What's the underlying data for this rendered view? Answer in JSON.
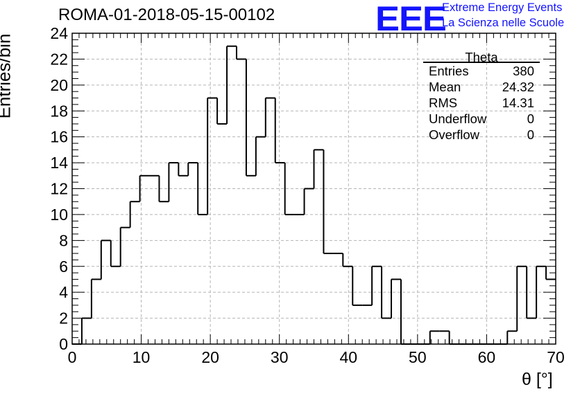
{
  "chart_data": {
    "type": "bar",
    "style": "step-histogram",
    "title": "ROMA-01-2018-05-15-00102",
    "xlabel": "θ [°]",
    "ylabel": "Entries/bin",
    "xlim": [
      0,
      70
    ],
    "ylim": [
      0,
      24
    ],
    "bin_width": 1.4,
    "x_ticks": [
      0,
      10,
      20,
      30,
      40,
      50,
      60,
      70
    ],
    "y_ticks": [
      0,
      2,
      4,
      6,
      8,
      10,
      12,
      14,
      16,
      18,
      20,
      22,
      24
    ],
    "grid": true,
    "bin_edges_start": 0,
    "values": [
      0,
      2,
      5,
      8,
      6,
      9,
      11,
      13,
      13,
      11,
      14,
      13,
      14,
      10,
      19,
      17,
      23,
      22,
      13,
      16,
      19,
      14,
      10,
      10,
      12,
      15,
      7,
      7,
      6,
      3,
      3,
      6,
      2,
      5,
      0,
      0,
      0,
      1,
      1,
      0,
      0,
      0,
      0,
      0,
      0,
      1,
      6,
      2,
      6,
      5,
      0
    ],
    "line_color": "#000000",
    "grid_color": "#b4b4b4"
  },
  "stats": {
    "name": "Theta",
    "rows": [
      {
        "label": "Entries",
        "value": "380"
      },
      {
        "label": "Mean",
        "value": "24.32"
      },
      {
        "label": "RMS",
        "value": "14.31"
      },
      {
        "label": "Underflow",
        "value": "0"
      },
      {
        "label": "Overflow",
        "value": "0"
      }
    ]
  },
  "logo": {
    "mark": "EEE",
    "line1": "Extreme Energy Events",
    "line2": "La Scienza nelle Scuole",
    "color": "#1414ff"
  }
}
